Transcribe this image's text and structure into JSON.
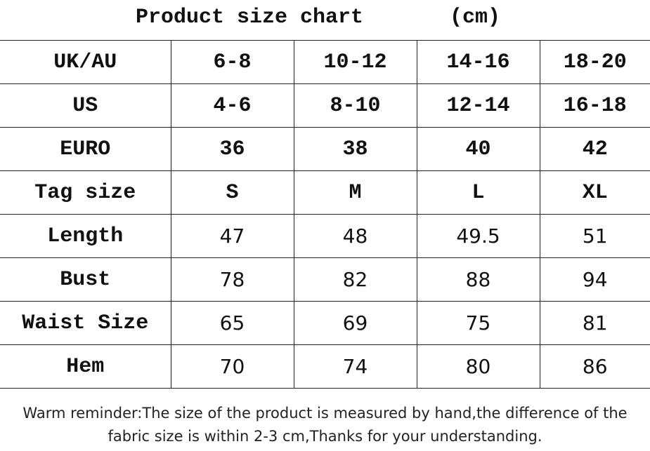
{
  "header": {
    "title": "Product size chart",
    "unit": "(cm)"
  },
  "table": {
    "rows": [
      [
        "UK/AU",
        "6-8",
        "10-12",
        "14-16",
        "18-20"
      ],
      [
        "US",
        "4-6",
        "8-10",
        "12-14",
        "16-18"
      ],
      [
        "EURO",
        "36",
        "38",
        "40",
        "42"
      ],
      [
        "Tag size",
        "S",
        "M",
        "L",
        "XL"
      ],
      [
        "Length",
        "47",
        "48",
        "49.5",
        "51"
      ],
      [
        "Bust",
        "78",
        "82",
        "88",
        "94"
      ],
      [
        "Waist Size",
        "65",
        "69",
        "75",
        "81"
      ],
      [
        "Hem",
        "70",
        "74",
        "80",
        "86"
      ]
    ]
  },
  "footer": {
    "lines": [
      "Warm reminder:The size of the product is measured by hand,the difference of the",
      "fabric size is within 2-3 cm,Thanks for your understanding."
    ]
  }
}
